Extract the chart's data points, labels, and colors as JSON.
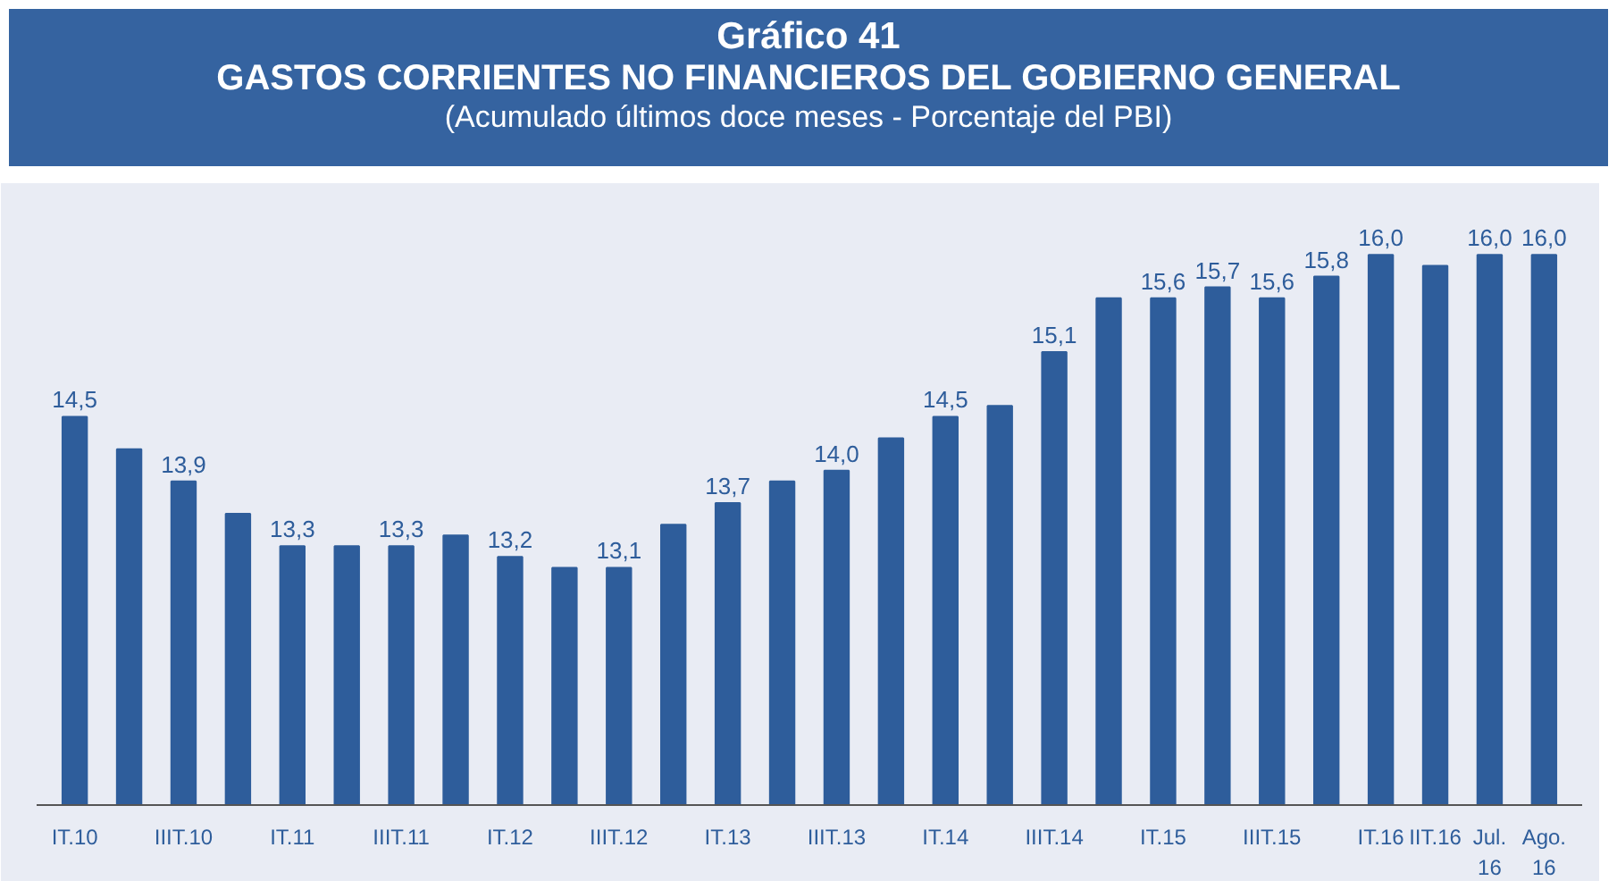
{
  "chart_data": {
    "type": "bar",
    "title": "Gráfico 41",
    "subtitle": "GASTOS CORRIENTES NO FINANCIEROS DEL GOBIERNO GENERAL",
    "annotations": [
      "(Acumulado últimos doce meses - Porcentaje del PBI)"
    ],
    "categories": [
      "IT.10",
      null,
      "IIIT.10",
      null,
      "IT.11",
      null,
      "IIIT.11",
      null,
      "IT.12",
      null,
      "IIIT.12",
      null,
      "IT.13",
      null,
      "IIIT.13",
      null,
      "IT.14",
      null,
      "IIIT.14",
      null,
      "IT.15",
      null,
      "IIIT.15",
      null,
      "IT.16",
      "IIT.16",
      "Jul. 16",
      "Ago. 16"
    ],
    "values": [
      14.5,
      14.2,
      13.9,
      13.6,
      13.3,
      13.3,
      13.3,
      13.4,
      13.2,
      13.1,
      13.1,
      13.5,
      13.7,
      13.9,
      14.0,
      14.3,
      14.5,
      14.6,
      15.1,
      15.6,
      15.6,
      15.7,
      15.6,
      15.8,
      16.0,
      15.9,
      16.0,
      16.0
    ],
    "value_labels": [
      "14,5",
      null,
      "13,9",
      null,
      "13,3",
      null,
      "13,3",
      null,
      "13,2",
      null,
      "13,1",
      null,
      "13,7",
      null,
      "14,0",
      null,
      "14,5",
      null,
      "15,1",
      null,
      "15,6",
      "15,7",
      "15,6",
      "15,8",
      "16,0",
      null,
      "16,0",
      "16,0"
    ],
    "color": "#2e5d9b",
    "ylim": [
      10.9,
      16.5
    ],
    "tick_labels": "x",
    "grid": false
  }
}
